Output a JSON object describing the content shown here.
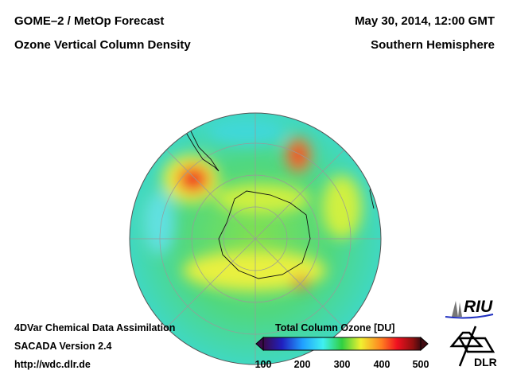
{
  "header": {
    "title_left_1": "GOME–2 / MetOp Forecast",
    "title_left_2": "Ozone Vertical Column Density",
    "title_right_1": "May 30, 2014, 12:00 GMT",
    "title_right_2": "Southern Hemisphere"
  },
  "footer": {
    "line1": "4DVar Chemical Data Assimilation",
    "line2": "SACADA Version 2.4",
    "line3": "http://wdc.dlr.de"
  },
  "colorbar": {
    "title": "Total Column Ozone [DU]",
    "ticks": [
      "100",
      "200",
      "300",
      "400",
      "500"
    ],
    "range": [
      100,
      500
    ],
    "colors": [
      "#3a0a4a",
      "#2020c0",
      "#20a0ff",
      "#40f0f0",
      "#30d040",
      "#f0f030",
      "#ff8020",
      "#f01020",
      "#901010",
      "#400a10"
    ]
  },
  "logos": {
    "riu": "RIU",
    "dlr": "DLR"
  }
}
